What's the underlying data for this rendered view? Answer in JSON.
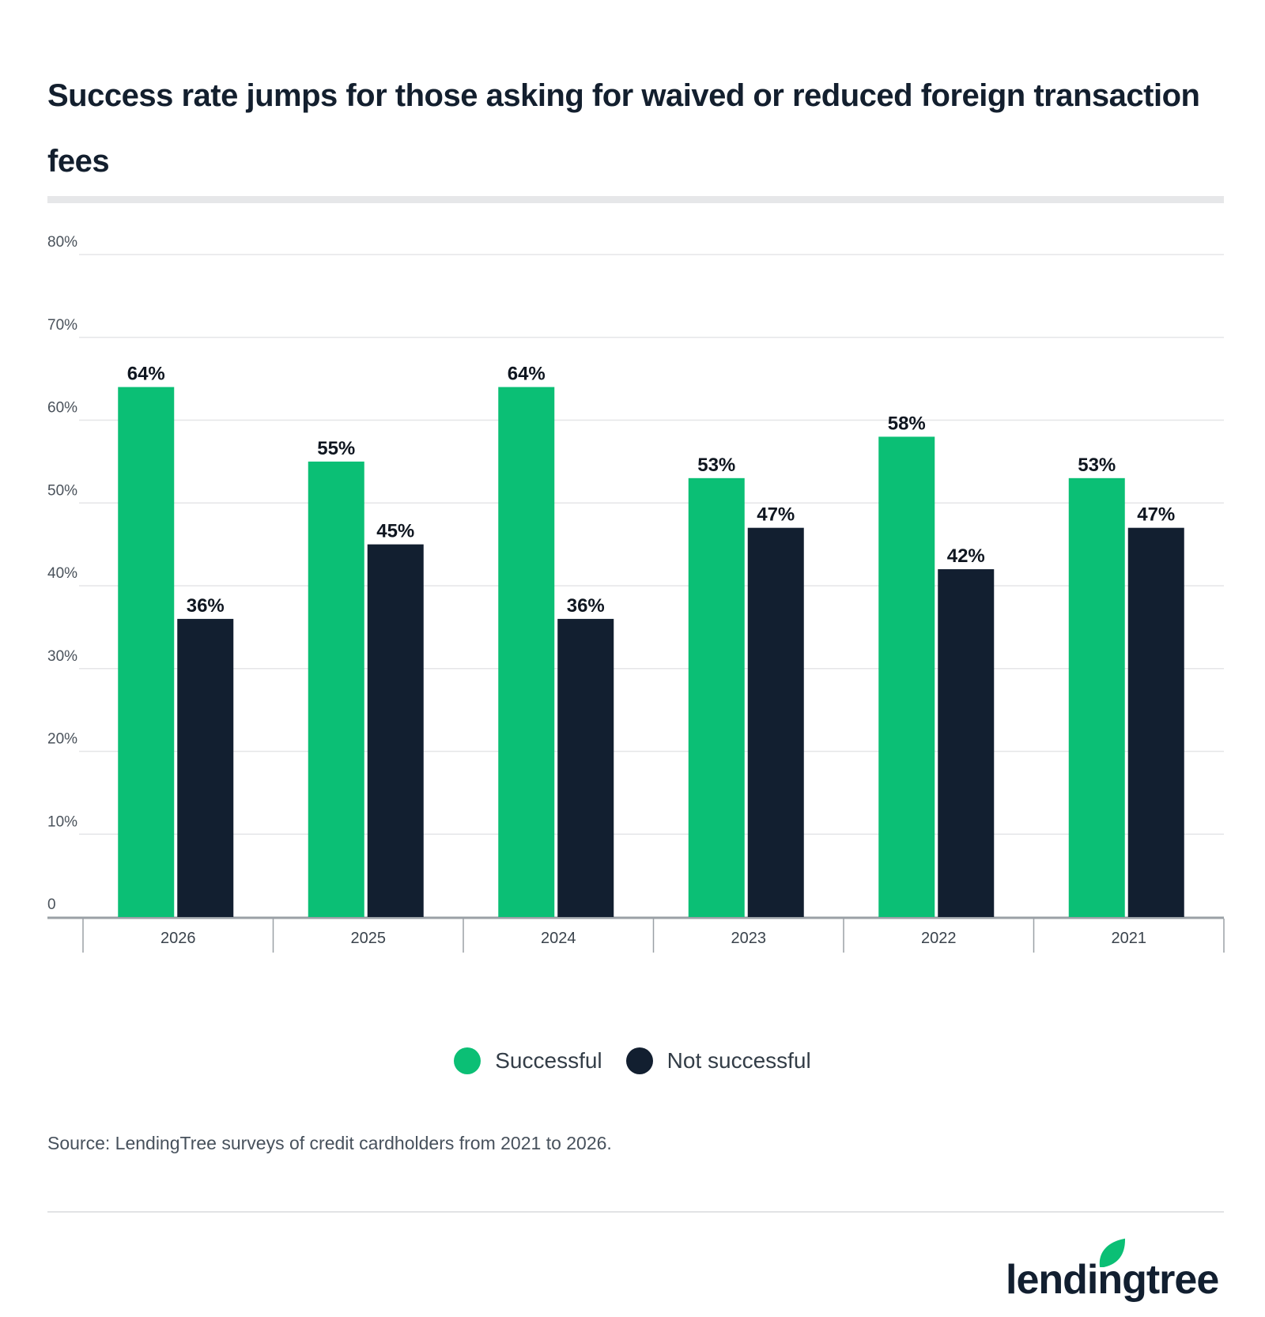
{
  "title": "Success rate jumps for those asking for waived or reduced foreign transaction fees",
  "source": "Source: LendingTree surveys of credit cardholders from 2021 to 2026.",
  "logo_text": "lendingtree",
  "colors": {
    "successful": "#0bbf75",
    "not_successful": "#121f30",
    "grid": "#e5e6e8",
    "axis": "#9aa0a6"
  },
  "chart_data": {
    "type": "bar",
    "categories": [
      "2026",
      "2025",
      "2024",
      "2023",
      "2022",
      "2021"
    ],
    "series": [
      {
        "name": "Successful",
        "values": [
          64,
          55,
          64,
          53,
          58,
          53
        ]
      },
      {
        "name": "Not successful",
        "values": [
          36,
          45,
          36,
          47,
          42,
          47
        ]
      }
    ],
    "ylim": [
      0,
      80
    ],
    "yticks": [
      0,
      10,
      20,
      30,
      40,
      50,
      60,
      70,
      80
    ],
    "ytick_labels": [
      "0",
      "10%",
      "20%",
      "30%",
      "40%",
      "50%",
      "60%",
      "70%",
      "80%"
    ],
    "data_labels": [
      [
        "64%",
        "55%",
        "64%",
        "53%",
        "58%",
        "53%"
      ],
      [
        "36%",
        "45%",
        "36%",
        "47%",
        "42%",
        "47%"
      ]
    ],
    "legend_position": "bottom-center",
    "grid": true
  }
}
